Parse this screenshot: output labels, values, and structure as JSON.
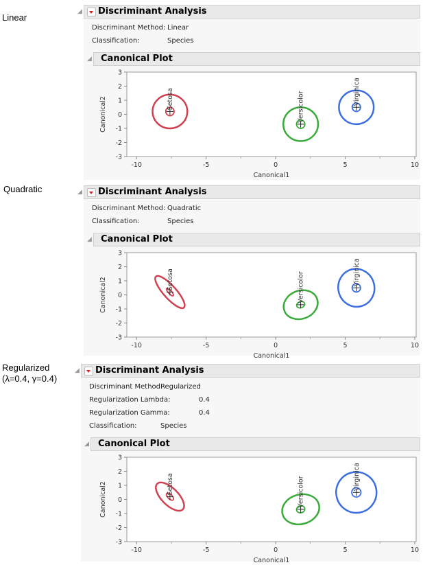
{
  "panels": [
    {
      "side_label": "Linear",
      "side_label2": "",
      "title": "Discriminant Analysis",
      "rows": [
        {
          "label": "Discriminant Method:",
          "value": "Linear"
        },
        {
          "label": "Classification:",
          "value": "Species"
        }
      ],
      "plot_title": "Canonical Plot"
    },
    {
      "side_label": "Quadratic",
      "side_label2": "",
      "title": "Discriminant Analysis",
      "rows": [
        {
          "label": "Discriminant Method:",
          "value": "Quadratic"
        },
        {
          "label": "Classification:",
          "value": "Species"
        }
      ],
      "plot_title": "Canonical Plot"
    },
    {
      "side_label": "Regularized",
      "side_label2": "(λ=0.4, γ=0.4)",
      "title": "Discriminant Analysis",
      "rows": [
        {
          "label": "Discriminant Method:",
          "value": "Regularized"
        },
        {
          "label": "Regularization Lambda:",
          "value": "0.4"
        },
        {
          "label": "Regularization Gamma:",
          "value": "0.4"
        },
        {
          "label": "Classification:",
          "value": "Species"
        }
      ],
      "plot_title": "Canonical Plot"
    }
  ],
  "chart_data": [
    {
      "type": "scatter",
      "xlabel": "Canonical1",
      "ylabel": "Canonical2",
      "xlim": [
        -10.7,
        10.1
      ],
      "ylim": [
        -3,
        3
      ],
      "xticks": [
        -10,
        -5,
        0,
        5,
        10
      ],
      "yticks": [
        3,
        2,
        1,
        0,
        -1,
        -2,
        -3
      ],
      "groups": [
        {
          "name": "Setosa",
          "color": "#d04050",
          "center": [
            -7.6,
            0.2
          ],
          "outer": {
            "rx": 1.25,
            "ry": 1.2,
            "angle": 0
          },
          "inner": {
            "rx": 0.3,
            "ry": 0.3,
            "angle": 0
          }
        },
        {
          "name": "Versicolor",
          "color": "#3aab3a",
          "center": [
            1.8,
            -0.7
          ],
          "outer": {
            "rx": 1.25,
            "ry": 1.2,
            "angle": 0
          },
          "inner": {
            "rx": 0.3,
            "ry": 0.3,
            "angle": 0
          }
        },
        {
          "name": "Virginica",
          "color": "#3c6ee0",
          "center": [
            5.8,
            0.5
          ],
          "outer": {
            "rx": 1.25,
            "ry": 1.2,
            "angle": 0
          },
          "inner": {
            "rx": 0.3,
            "ry": 0.3,
            "angle": 0
          }
        }
      ]
    },
    {
      "type": "scatter",
      "xlabel": "Canonical1",
      "ylabel": "Canonical2",
      "xlim": [
        -10.7,
        10.1
      ],
      "ylim": [
        -3,
        3
      ],
      "xticks": [
        -10,
        -5,
        0,
        5,
        10
      ],
      "yticks": [
        3,
        2,
        1,
        0,
        -1,
        -2,
        -3
      ],
      "groups": [
        {
          "name": "Setosa",
          "color": "#d04050",
          "center": [
            -7.6,
            0.2
          ],
          "outer": {
            "rx": 1.5,
            "ry": 0.45,
            "angle": 48
          },
          "inner": {
            "rx": 0.35,
            "ry": 0.12,
            "angle": 48
          }
        },
        {
          "name": "Versicolor",
          "color": "#3aab3a",
          "center": [
            1.8,
            -0.7
          ],
          "outer": {
            "rx": 1.25,
            "ry": 1.0,
            "angle": -20
          },
          "inner": {
            "rx": 0.3,
            "ry": 0.22,
            "angle": -20
          }
        },
        {
          "name": "Virginica",
          "color": "#3c6ee0",
          "center": [
            5.8,
            0.5
          ],
          "outer": {
            "rx": 1.3,
            "ry": 1.35,
            "angle": -15
          },
          "inner": {
            "rx": 0.3,
            "ry": 0.3,
            "angle": 0
          }
        }
      ]
    },
    {
      "type": "scatter",
      "xlabel": "Canonical1",
      "ylabel": "Canonical2",
      "xlim": [
        -10.7,
        10.1
      ],
      "ylim": [
        -3,
        3
      ],
      "xticks": [
        -10,
        -5,
        0,
        5,
        10
      ],
      "yticks": [
        3,
        2,
        1,
        0,
        -1,
        -2,
        -3
      ],
      "groups": [
        {
          "name": "Setosa",
          "color": "#d04050",
          "center": [
            -7.6,
            0.2
          ],
          "outer": {
            "rx": 1.3,
            "ry": 0.6,
            "angle": 45
          },
          "inner": {
            "rx": 0.33,
            "ry": 0.16,
            "angle": 45
          }
        },
        {
          "name": "Versicolor",
          "color": "#3aab3a",
          "center": [
            1.8,
            -0.7
          ],
          "outer": {
            "rx": 1.35,
            "ry": 1.05,
            "angle": -15
          },
          "inner": {
            "rx": 0.3,
            "ry": 0.25,
            "angle": -15
          }
        },
        {
          "name": "Virginica",
          "color": "#3c6ee0",
          "center": [
            5.8,
            0.5
          ],
          "outer": {
            "rx": 1.45,
            "ry": 1.45,
            "angle": -10
          },
          "inner": {
            "rx": 0.33,
            "ry": 0.33,
            "angle": 0
          }
        }
      ]
    }
  ]
}
